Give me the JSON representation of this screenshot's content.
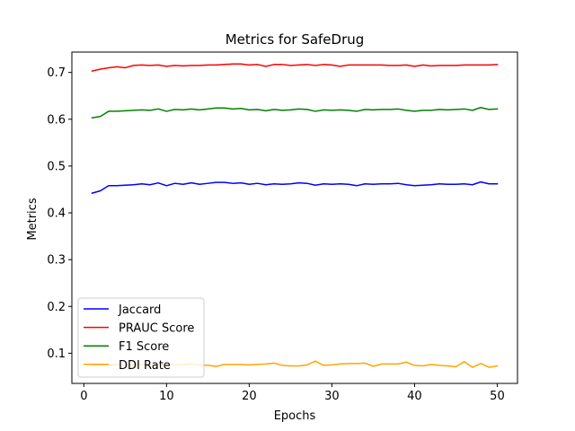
{
  "chart_data": {
    "type": "line",
    "title": "Metrics for SafeDrug",
    "xlabel": "Epochs",
    "ylabel": "Metrics",
    "xlim": [
      -1.45,
      52.45
    ],
    "ylim": [
      0.0355,
      0.7435
    ],
    "xticks": [
      0,
      10,
      20,
      30,
      40,
      50
    ],
    "yticks": [
      0.1,
      0.2,
      0.3,
      0.4,
      0.5,
      0.6,
      0.7
    ],
    "xtick_labels": [
      "0",
      "10",
      "20",
      "30",
      "40",
      "50"
    ],
    "ytick_labels": [
      "0.1",
      "0.2",
      "0.3",
      "0.4",
      "0.5",
      "0.6",
      "0.7"
    ],
    "grid": false,
    "legend_position": "lower-left",
    "x": [
      1,
      2,
      3,
      4,
      5,
      6,
      7,
      8,
      9,
      10,
      11,
      12,
      13,
      14,
      15,
      16,
      17,
      18,
      19,
      20,
      21,
      22,
      23,
      24,
      25,
      26,
      27,
      28,
      29,
      30,
      31,
      32,
      33,
      34,
      35,
      36,
      37,
      38,
      39,
      40,
      41,
      42,
      43,
      44,
      45,
      46,
      47,
      48,
      49,
      50
    ],
    "series": [
      {
        "name": "Jaccard",
        "color": "#0000ff",
        "values": [
          0.442,
          0.447,
          0.458,
          0.458,
          0.459,
          0.46,
          0.462,
          0.46,
          0.464,
          0.458,
          0.463,
          0.461,
          0.464,
          0.461,
          0.463,
          0.465,
          0.465,
          0.463,
          0.464,
          0.461,
          0.463,
          0.46,
          0.462,
          0.461,
          0.462,
          0.464,
          0.463,
          0.459,
          0.462,
          0.461,
          0.462,
          0.461,
          0.458,
          0.462,
          0.461,
          0.462,
          0.462,
          0.463,
          0.46,
          0.458,
          0.459,
          0.46,
          0.462,
          0.461,
          0.461,
          0.462,
          0.46,
          0.466,
          0.462,
          0.462
        ]
      },
      {
        "name": "PRAUC Score",
        "color": "#ff0000",
        "values": [
          0.703,
          0.707,
          0.71,
          0.712,
          0.71,
          0.715,
          0.716,
          0.715,
          0.716,
          0.713,
          0.715,
          0.714,
          0.715,
          0.715,
          0.716,
          0.716,
          0.717,
          0.718,
          0.718,
          0.716,
          0.717,
          0.713,
          0.717,
          0.717,
          0.715,
          0.716,
          0.717,
          0.715,
          0.717,
          0.716,
          0.713,
          0.716,
          0.716,
          0.716,
          0.716,
          0.716,
          0.715,
          0.715,
          0.716,
          0.713,
          0.716,
          0.714,
          0.715,
          0.715,
          0.715,
          0.716,
          0.716,
          0.716,
          0.716,
          0.717
        ]
      },
      {
        "name": "F1 Score",
        "color": "#008000",
        "values": [
          0.603,
          0.606,
          0.617,
          0.617,
          0.618,
          0.619,
          0.62,
          0.619,
          0.622,
          0.617,
          0.621,
          0.62,
          0.622,
          0.62,
          0.622,
          0.624,
          0.624,
          0.622,
          0.623,
          0.62,
          0.621,
          0.618,
          0.621,
          0.619,
          0.62,
          0.622,
          0.621,
          0.617,
          0.62,
          0.619,
          0.62,
          0.619,
          0.617,
          0.621,
          0.62,
          0.621,
          0.621,
          0.622,
          0.619,
          0.617,
          0.619,
          0.619,
          0.621,
          0.62,
          0.621,
          0.622,
          0.619,
          0.625,
          0.621,
          0.622
        ]
      },
      {
        "name": "DDI Rate",
        "color": "#ffa500",
        "values": [
          0.075,
          0.075,
          0.074,
          0.076,
          0.074,
          0.076,
          0.076,
          0.075,
          0.076,
          0.075,
          0.075,
          0.075,
          0.077,
          0.075,
          0.074,
          0.072,
          0.076,
          0.076,
          0.076,
          0.075,
          0.076,
          0.077,
          0.079,
          0.074,
          0.073,
          0.073,
          0.075,
          0.083,
          0.074,
          0.075,
          0.077,
          0.078,
          0.078,
          0.079,
          0.072,
          0.077,
          0.077,
          0.077,
          0.081,
          0.074,
          0.073,
          0.076,
          0.074,
          0.073,
          0.071,
          0.082,
          0.07,
          0.078,
          0.07,
          0.073
        ]
      }
    ]
  }
}
